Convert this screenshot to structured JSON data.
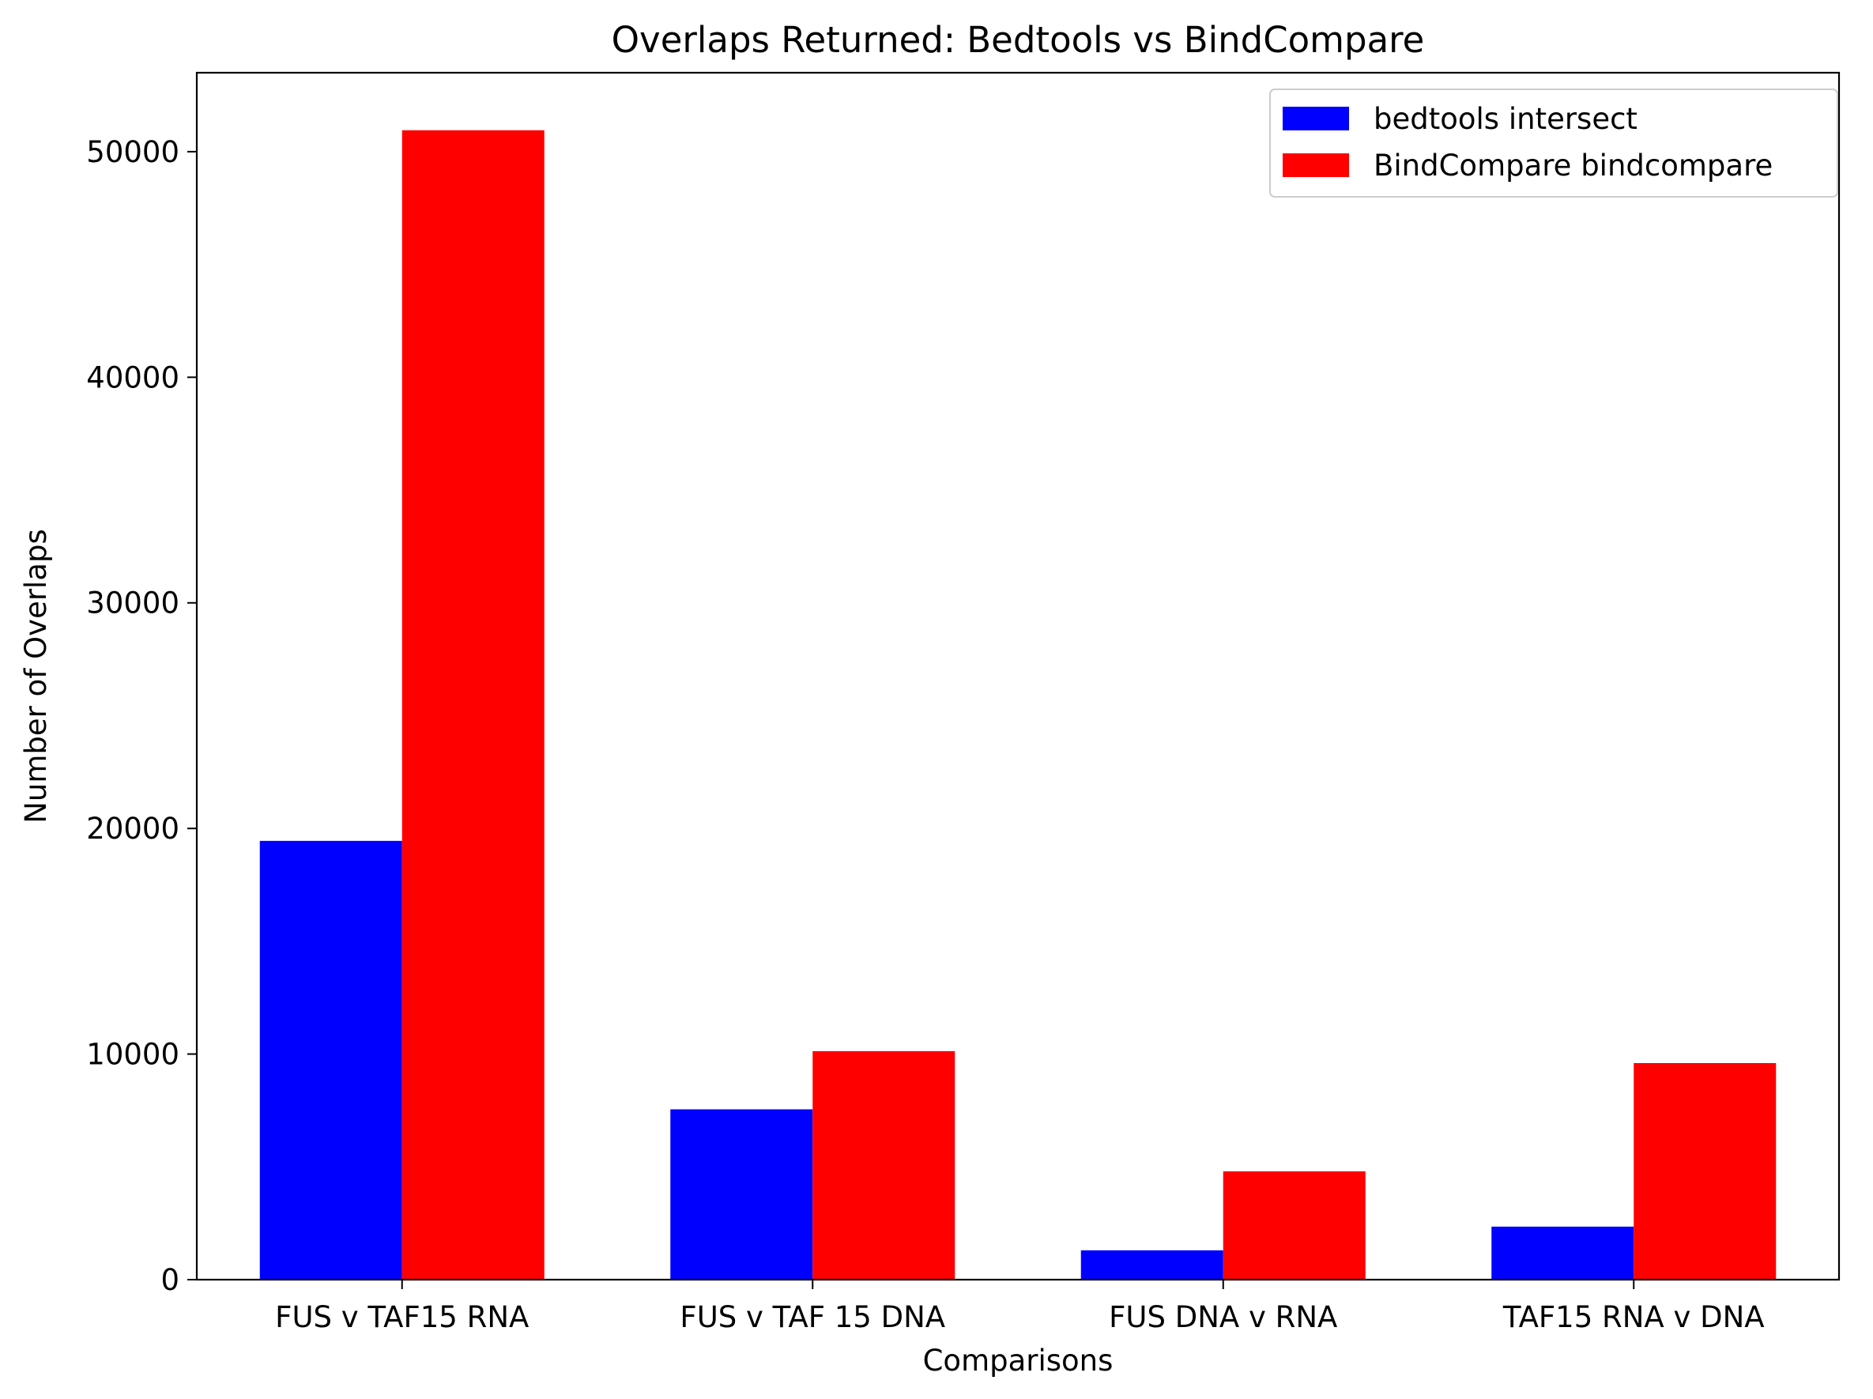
{
  "chart_data": {
    "type": "bar",
    "title": "Overlaps Returned: Bedtools vs BindCompare",
    "xlabel": "Comparisons",
    "ylabel": "Number of Overlaps",
    "categories": [
      "FUS v TAF15 RNA",
      "FUS v TAF 15 DNA",
      "FUS DNA v RNA",
      "TAF15 RNA v DNA"
    ],
    "series": [
      {
        "name": "bedtools intersect",
        "color": "#0000ff",
        "values": [
          19450,
          7550,
          1300,
          2350
        ]
      },
      {
        "name": "BindCompare bindcompare",
        "color": "#ff0000",
        "values": [
          50950,
          10130,
          4800,
          9600
        ]
      }
    ],
    "ylim": [
      0,
      53500
    ],
    "yticks": [
      0,
      10000,
      20000,
      30000,
      40000,
      50000
    ],
    "grid": false,
    "legend_position": "top-right"
  }
}
